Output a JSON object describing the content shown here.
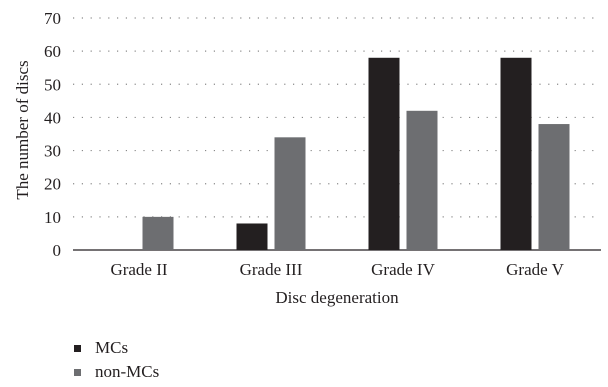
{
  "chart_data": {
    "type": "bar",
    "title": "",
    "xlabel": "Disc degeneration",
    "ylabel": "The number of discs",
    "categories": [
      "Grade II",
      "Grade III",
      "Grade IV",
      "Grade V"
    ],
    "series": [
      {
        "name": "MCs",
        "values": [
          0,
          8,
          58,
          58
        ],
        "color": "#231f20"
      },
      {
        "name": "non-MCs",
        "values": [
          10,
          34,
          42,
          38
        ],
        "color": "#6d6e71"
      }
    ],
    "ylim": [
      0,
      70
    ],
    "yticks": [
      "0",
      "10",
      "20",
      "30",
      "40",
      "50",
      "60",
      "70"
    ],
    "grid": true,
    "legend_position": "bottom-left"
  }
}
